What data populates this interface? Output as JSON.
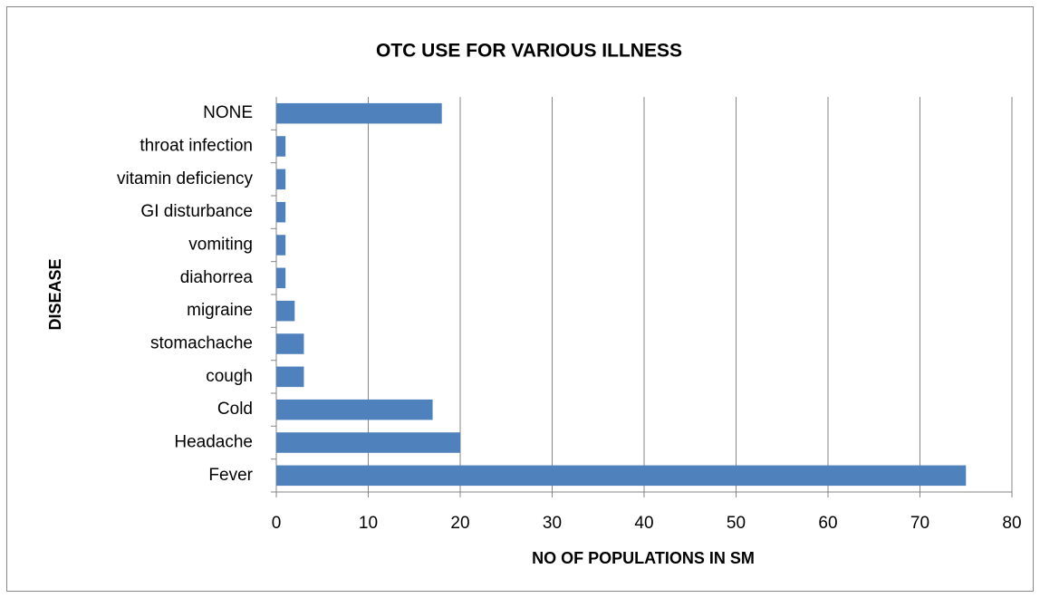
{
  "chart_data": {
    "type": "bar",
    "orientation": "horizontal",
    "title": "OTC USE  FOR  VARIOUS ILLNESS",
    "x_label": "NO OF POPULATIONS IN SM",
    "y_label": "DISEASE",
    "categories": [
      "Fever",
      "Headache",
      "Cold",
      "cough",
      "stomachache",
      "migraine",
      "diahorrea",
      "vomiting",
      "GI disturbance",
      "vitamin deficiency",
      "throat infection",
      "NONE"
    ],
    "values": [
      75,
      20,
      17,
      3,
      3,
      2,
      1,
      1,
      1,
      1,
      1,
      18
    ],
    "color": "#4f81bd",
    "xlim": [
      0,
      80
    ],
    "xticks": [
      0,
      10,
      20,
      30,
      40,
      50,
      60,
      70,
      80
    ],
    "grid": true
  }
}
